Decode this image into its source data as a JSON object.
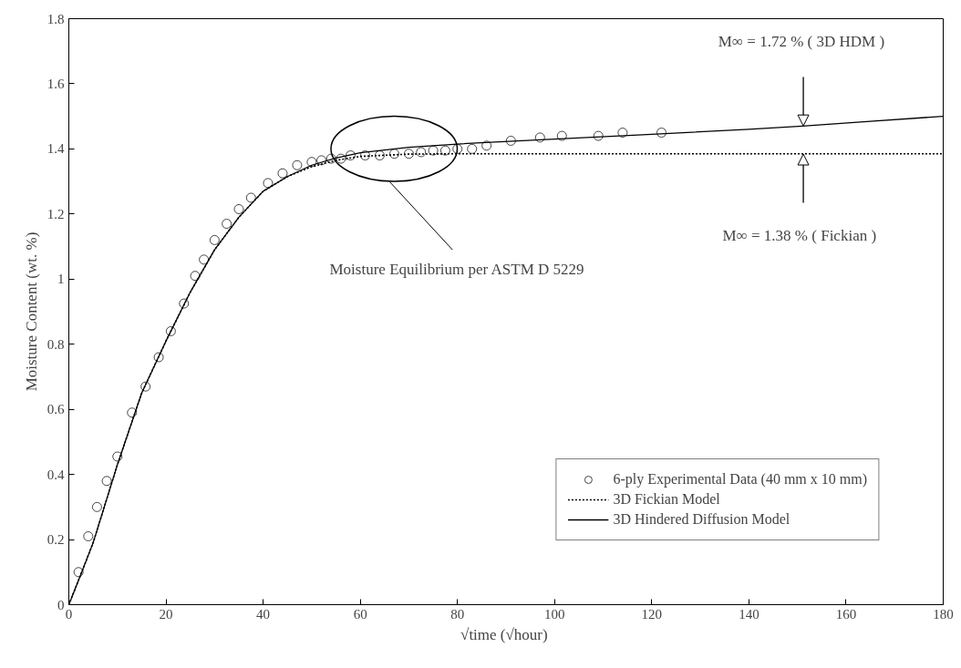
{
  "chart_data": {
    "type": "line",
    "xlabel": "√time  (√hour)",
    "ylabel": "Moisture Content (wt. %)",
    "xlim": [
      0,
      180
    ],
    "xticks": [
      0,
      20,
      40,
      60,
      80,
      100,
      120,
      140,
      160,
      180
    ],
    "ylim": [
      0,
      1.8
    ],
    "yticks": [
      0,
      0.2,
      0.4,
      0.6,
      0.8,
      1,
      1.2,
      1.4,
      1.6,
      1.8
    ],
    "grid": false,
    "legend": "bottom right",
    "series": [
      {
        "name": "6-ply Experimental Data (40 mm x 10 mm)",
        "type": "scatter",
        "marker": "circle",
        "color": "#444444",
        "x": [
          2,
          4,
          5.8,
          7.8,
          10,
          13,
          15.8,
          18.5,
          21,
          23.7,
          26,
          27.8,
          30,
          32.5,
          35,
          37.5,
          41,
          44,
          47,
          50,
          52,
          54,
          56,
          58,
          61,
          64,
          67,
          70,
          72.5,
          75,
          77.5,
          80,
          83,
          86,
          91,
          97,
          101.5,
          109,
          114,
          122
        ],
        "values": [
          0.1,
          0.21,
          0.3,
          0.38,
          0.455,
          0.59,
          0.67,
          0.76,
          0.84,
          0.925,
          1.01,
          1.06,
          1.12,
          1.17,
          1.215,
          1.25,
          1.295,
          1.325,
          1.35,
          1.36,
          1.365,
          1.37,
          1.37,
          1.38,
          1.38,
          1.38,
          1.385,
          1.385,
          1.39,
          1.395,
          1.395,
          1.4,
          1.4,
          1.41,
          1.425,
          1.435,
          1.44,
          1.44,
          1.45,
          1.45
        ]
      },
      {
        "name": "3D Fickian Model",
        "line_style": "dotted",
        "color": "#000000",
        "x": [
          0,
          2,
          5,
          10,
          15,
          20,
          25,
          30,
          35,
          40,
          45,
          50,
          55,
          60,
          70,
          80,
          180
        ],
        "values": [
          0,
          0.075,
          0.19,
          0.43,
          0.65,
          0.81,
          0.96,
          1.09,
          1.19,
          1.27,
          1.315,
          1.345,
          1.365,
          1.377,
          1.384,
          1.385,
          1.385
        ]
      },
      {
        "name": "3D Hindered Diffusion Model",
        "line_style": "solid",
        "color": "#000000",
        "x": [
          0,
          2,
          5,
          10,
          15,
          20,
          25,
          30,
          35,
          40,
          45,
          50,
          55,
          60,
          70,
          80,
          100,
          120,
          140,
          151,
          165,
          180
        ],
        "values": [
          0,
          0.075,
          0.19,
          0.43,
          0.65,
          0.81,
          0.96,
          1.09,
          1.19,
          1.27,
          1.315,
          1.35,
          1.372,
          1.388,
          1.405,
          1.415,
          1.43,
          1.445,
          1.46,
          1.47,
          1.485,
          1.5
        ]
      }
    ],
    "annotations": [
      "M∞ = 1.72 %  ( 3D HDM )",
      "M∞ = 1.38 %   ( Fickian )",
      "Moisture Equilibrium per ASTM D 5229"
    ]
  }
}
